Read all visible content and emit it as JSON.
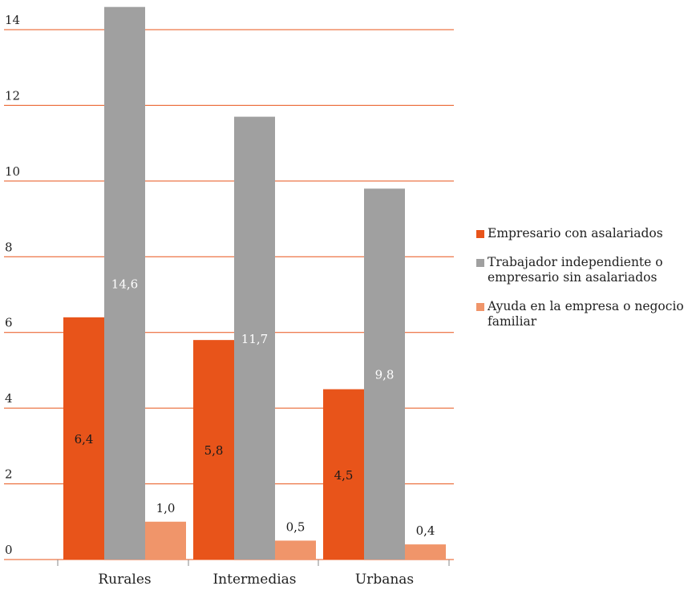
{
  "chart_data": {
    "type": "bar",
    "categories": [
      "Rurales",
      "Intermedias",
      "Urbanas"
    ],
    "series": [
      {
        "name": "Empresario con asalariados",
        "values": [
          6.4,
          5.8,
          4.5
        ],
        "labels": [
          "6,4",
          "5,8",
          "4,5"
        ],
        "color": "#e8541a",
        "label_color": "#1a1a1a"
      },
      {
        "name": "Trabajador independiente o empresario sin asalariados",
        "values": [
          14.6,
          11.7,
          9.8
        ],
        "labels": [
          "14,6",
          "11,7",
          "9,8"
        ],
        "color": "#a0a0a0",
        "label_color": "#ffffff"
      },
      {
        "name": "Ayuda en la empresa o negocio familiar",
        "values": [
          1.0,
          0.5,
          0.4
        ],
        "labels": [
          "1,0",
          "0,5",
          "0,4"
        ],
        "color": "#f0956a",
        "label_color": "#1a1a1a"
      }
    ],
    "ylim": [
      0,
      14
    ],
    "yticks": [
      0,
      2,
      4,
      6,
      8,
      10,
      12,
      14
    ],
    "gridlines": true,
    "grid_color": "#e8541a",
    "legend_position": "right"
  }
}
